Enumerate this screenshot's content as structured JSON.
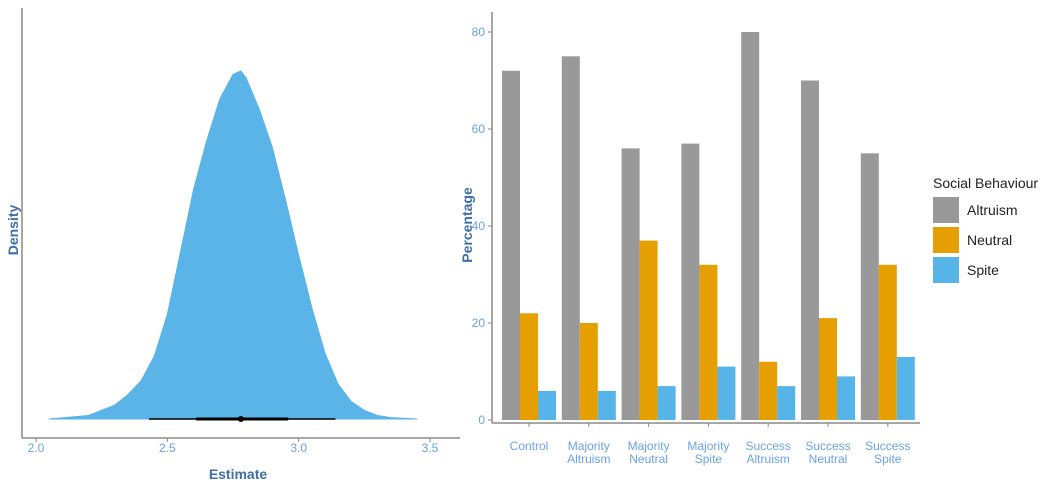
{
  "colors": {
    "axis_text": "#3f6fa8",
    "tick_text": "#6aa2e8",
    "density_fill": "#5ab4e8",
    "interval": "#000000",
    "altruism": "#999999",
    "neutral": "#e69f00",
    "spite": "#56b4e9"
  },
  "chart_data": [
    {
      "type": "area",
      "xlabel": "Estimate",
      "ylabel": "Density",
      "xlim": [
        2.0,
        3.5
      ],
      "xticks": [
        "2.0",
        "2.5",
        "3.0",
        "3.5"
      ],
      "y_ticks_shown": false,
      "grid": false,
      "density": {
        "x": [
          2.05,
          2.2,
          2.3,
          2.35,
          2.4,
          2.45,
          2.5,
          2.55,
          2.6,
          2.65,
          2.7,
          2.75,
          2.78,
          2.8,
          2.85,
          2.9,
          2.95,
          3.0,
          3.05,
          3.1,
          3.15,
          3.2,
          3.25,
          3.3,
          3.35,
          3.45
        ],
        "y": [
          0.0,
          0.01,
          0.04,
          0.07,
          0.11,
          0.18,
          0.3,
          0.48,
          0.66,
          0.8,
          0.92,
          0.99,
          1.0,
          0.98,
          0.89,
          0.78,
          0.63,
          0.47,
          0.32,
          0.19,
          0.1,
          0.05,
          0.025,
          0.01,
          0.004,
          0.0
        ]
      },
      "point_estimate": 2.78,
      "interval_66": [
        2.61,
        2.96
      ],
      "interval_95": [
        2.43,
        3.14
      ]
    },
    {
      "type": "bar",
      "xlabel": "",
      "ylabel": "Percentage",
      "ylim": [
        0,
        85
      ],
      "yticks": [
        0,
        20,
        40,
        60,
        80
      ],
      "grid": false,
      "categories": [
        [
          "Control"
        ],
        [
          "Majority",
          "Altruism"
        ],
        [
          "Majority",
          "Neutral"
        ],
        [
          "Majority",
          "Spite"
        ],
        [
          "Success",
          "Altruism"
        ],
        [
          "Success",
          "Neutral"
        ],
        [
          "Success",
          "Spite"
        ]
      ],
      "legend_title": "Social Behaviour",
      "legend_position": "right",
      "series": [
        {
          "name": "Altruism",
          "color": "#999999",
          "values": [
            72,
            75,
            56,
            57,
            80,
            70,
            55
          ]
        },
        {
          "name": "Neutral",
          "color": "#e69f00",
          "values": [
            22,
            20,
            37,
            32,
            12,
            21,
            32
          ]
        },
        {
          "name": "Spite",
          "color": "#56b4e9",
          "values": [
            6,
            6,
            7,
            11,
            7,
            9,
            13
          ]
        }
      ]
    }
  ]
}
